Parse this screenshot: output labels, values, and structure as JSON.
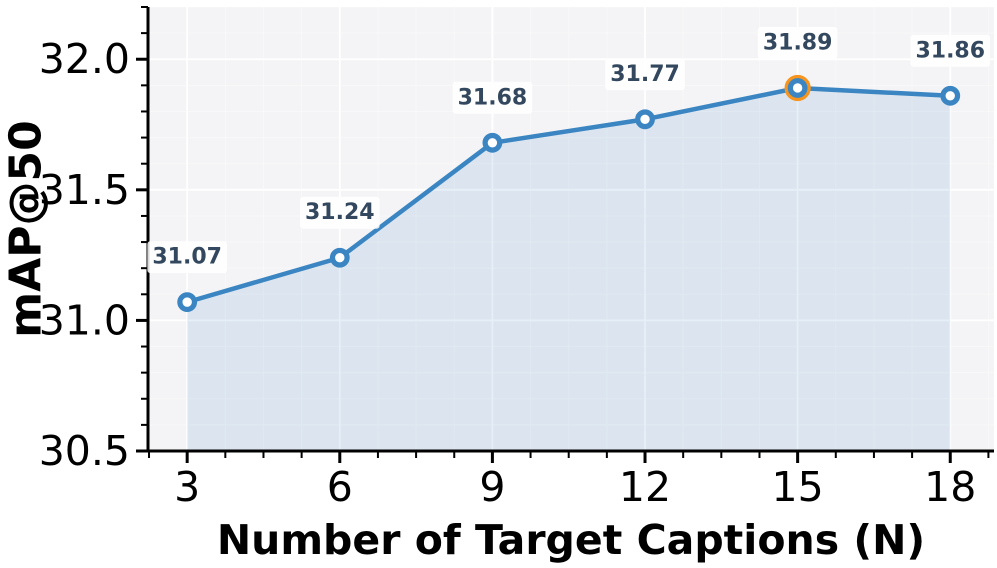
{
  "chart_data": {
    "type": "line",
    "title": "",
    "xlabel": "Number of Target Captions (N)",
    "ylabel": "mAP@50",
    "x": [
      3,
      6,
      9,
      12,
      15,
      18
    ],
    "y": [
      31.07,
      31.24,
      31.68,
      31.77,
      31.89,
      31.86
    ],
    "point_labels": [
      "31.07",
      "31.24",
      "31.68",
      "31.77",
      "31.89",
      "31.86"
    ],
    "highlight_index": 4,
    "highlight_x": 15,
    "highlight_y": 31.89,
    "xticks": [
      3,
      6,
      9,
      12,
      15,
      18
    ],
    "xtick_labels": [
      "3",
      "6",
      "9",
      "12",
      "15",
      "18"
    ],
    "yticks": [
      30.5,
      31.0,
      31.5,
      32.0
    ],
    "ytick_labels": [
      "30.5",
      "31.0",
      "31.5",
      "32.0"
    ],
    "xlim": [
      2.23,
      18.86
    ],
    "ylim": [
      30.5,
      32.2
    ],
    "x_minor_step": 0.75,
    "y_minor_step": 0.1,
    "grid": true,
    "area_fill": true,
    "legend": "none",
    "colors": {
      "line": "#3b86c2",
      "marker_face": "#ffffff",
      "highlight_ring": "#f7941d",
      "area_fill": "rgba(59,134,194,0.13)",
      "point_label_text": "#33485e",
      "point_label_bg": "rgba(255,255,255,0.85)",
      "plot_bg": "#f4f4f6",
      "grid_major": "#ffffff",
      "grid_minor": "rgba(255,255,255,0.4)",
      "axis": "#000000"
    }
  }
}
